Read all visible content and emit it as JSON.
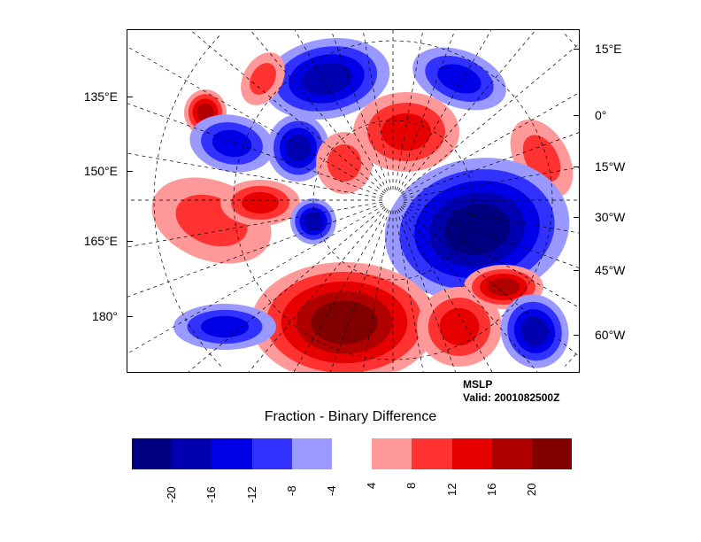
{
  "plot": {
    "field": "MSLP",
    "valid": "Valid: 2001082500Z",
    "colorbar_title": "Fraction - Binary Difference"
  },
  "axes": {
    "left_labels": [
      "135°E",
      "150°E",
      "165°E",
      "180°"
    ],
    "right_labels": [
      "15°E",
      "0°",
      "15°W",
      "30°W",
      "45°W",
      "60°W"
    ]
  },
  "colorbar": {
    "colors": [
      "#000080",
      "#0000b0",
      "#0000e6",
      "#3232ff",
      "#9999ff",
      "#ffffff",
      "#ff9999",
      "#ff3232",
      "#e60000",
      "#b00000",
      "#800000"
    ],
    "labels": [
      "-20",
      "-16",
      "-12",
      "-8",
      "-4",
      "4",
      "8",
      "12",
      "16",
      "20"
    ]
  }
}
